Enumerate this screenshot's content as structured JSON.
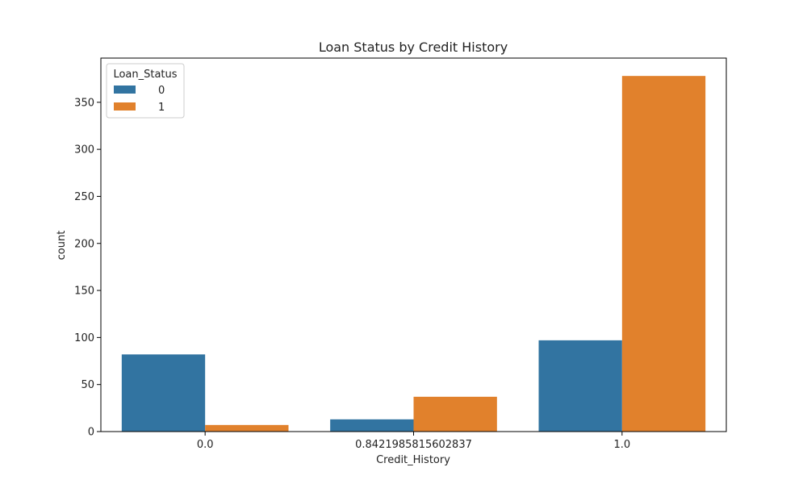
{
  "chart_data": {
    "type": "bar",
    "title": "Loan Status by Credit History",
    "xlabel": "Credit_History",
    "ylabel": "count",
    "categories": [
      "0.0",
      "0.8421985815602837",
      "1.0"
    ],
    "series": [
      {
        "name": "0",
        "color": "#3274a1",
        "values": [
          82,
          13,
          97
        ]
      },
      {
        "name": "1",
        "color": "#e1812c",
        "values": [
          7,
          37,
          378
        ]
      }
    ],
    "ylim": [
      0,
      397
    ],
    "yticks": [
      0,
      50,
      100,
      150,
      200,
      250,
      300,
      350
    ],
    "legend": {
      "title": "Loan_Status",
      "position": "top-left"
    },
    "grid": false
  }
}
